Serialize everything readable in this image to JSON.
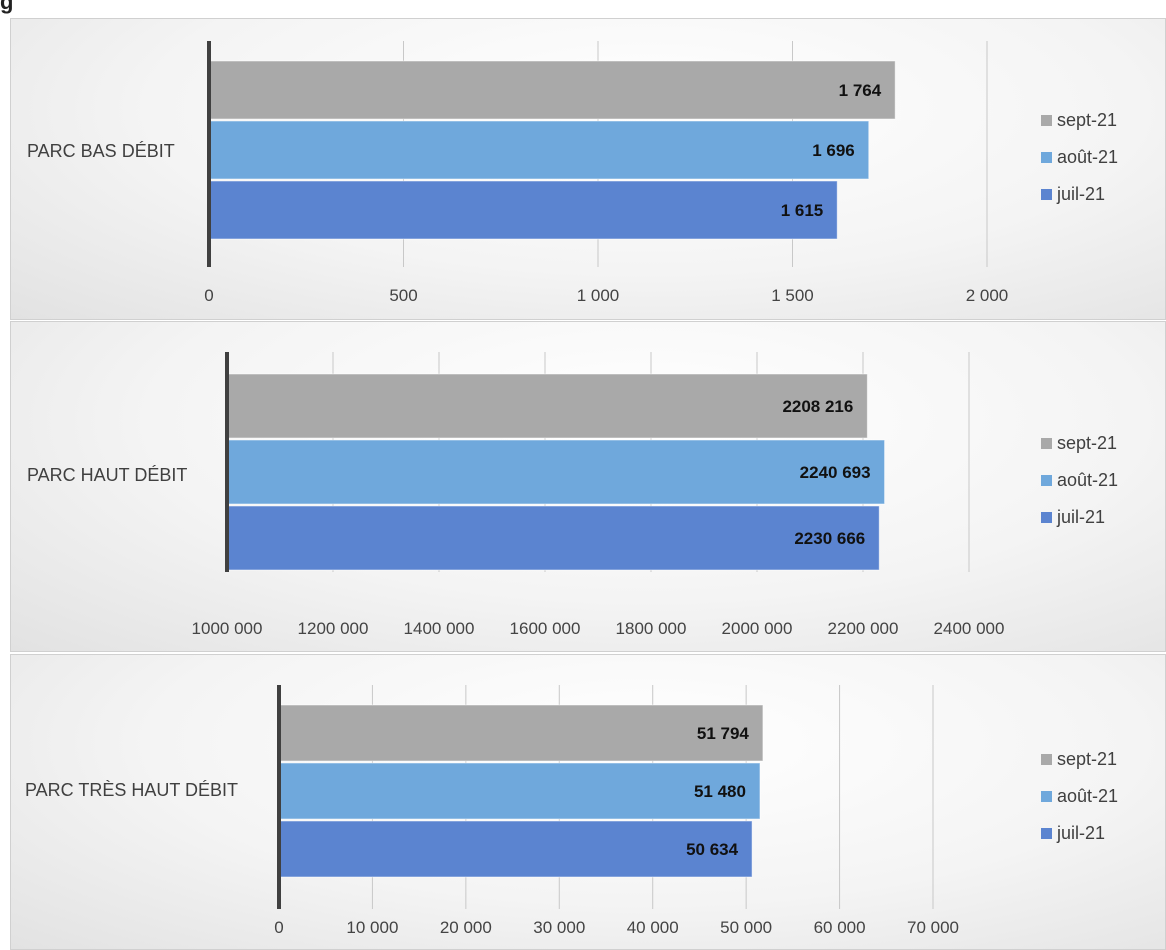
{
  "caption": {
    "text": "g"
  },
  "legend": [
    "sept-21",
    "août-21",
    "juil-21"
  ],
  "colors": {
    "sept-21": "#a9a9a9",
    "août-21": "#6fa8dc",
    "juil-21": "#5b84d0",
    "axis": "#404040",
    "grid": "#c8c8c8"
  },
  "chart_data": [
    {
      "type": "bar",
      "orientation": "horizontal",
      "category": "PARC BAS DÉBIT",
      "series": [
        {
          "name": "sept-21",
          "value": 1764,
          "label": "1 764"
        },
        {
          "name": "août-21",
          "value": 1696,
          "label": "1 696"
        },
        {
          "name": "juil-21",
          "value": 1615,
          "label": "1 615"
        }
      ],
      "xlim": [
        0,
        2000
      ],
      "ticks": [
        0,
        500,
        1000,
        1500,
        2000
      ],
      "tick_labels": [
        "0",
        "500",
        "1 000",
        "1 500",
        "2 000"
      ],
      "grid": true,
      "legend_position": "right"
    },
    {
      "type": "bar",
      "orientation": "horizontal",
      "category": "PARC HAUT DÉBIT",
      "series": [
        {
          "name": "sept-21",
          "value": 2208216,
          "label": "2208 216"
        },
        {
          "name": "août-21",
          "value": 2240693,
          "label": "2240 693"
        },
        {
          "name": "juil-21",
          "value": 2230666,
          "label": "2230 666"
        }
      ],
      "xlim": [
        1000000,
        2400000
      ],
      "ticks": [
        1000000,
        1200000,
        1400000,
        1600000,
        1800000,
        2000000,
        2200000,
        2400000
      ],
      "tick_labels": [
        "1000 000",
        "1200 000",
        "1400 000",
        "1600 000",
        "1800 000",
        "2000 000",
        "2200 000",
        "2400 000"
      ],
      "grid": true,
      "legend_position": "right"
    },
    {
      "type": "bar",
      "orientation": "horizontal",
      "category": "PARC TRÈS HAUT DÉBIT",
      "series": [
        {
          "name": "sept-21",
          "value": 51794,
          "label": "51 794"
        },
        {
          "name": "août-21",
          "value": 51480,
          "label": "51 480"
        },
        {
          "name": "juil-21",
          "value": 50634,
          "label": "50 634"
        }
      ],
      "xlim": [
        0,
        70000
      ],
      "ticks": [
        0,
        10000,
        20000,
        30000,
        40000,
        50000,
        60000,
        70000
      ],
      "tick_labels": [
        "0",
        "10 000",
        "20 000",
        "30 000",
        "40 000",
        "50 000",
        "60 000",
        "70 000"
      ],
      "grid": true,
      "legend_position": "right"
    }
  ]
}
